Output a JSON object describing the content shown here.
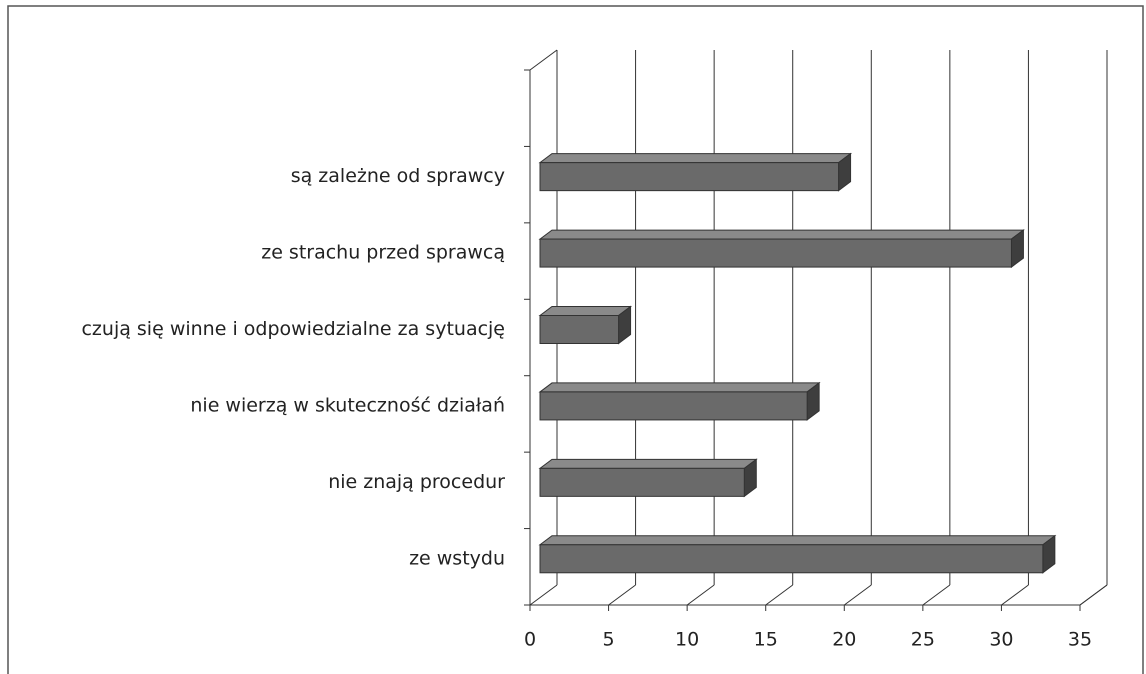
{
  "chart_data": {
    "type": "bar",
    "orientation": "horizontal",
    "three_d": true,
    "categories": [
      "ze wstydu",
      "nie znają procedur",
      "nie wierzą w skuteczność działań",
      "czują się winne i odpowiedzialne za sytuację",
      "ze strachu przed sprawcą",
      "są zależne od sprawcy",
      null
    ],
    "values": [
      32,
      13,
      17,
      5,
      30,
      19,
      null
    ],
    "color": "#6a6a6a",
    "xlim": [
      0,
      35
    ],
    "xticks": [
      0,
      5,
      10,
      15,
      20,
      25,
      30,
      35
    ],
    "grid": true
  }
}
